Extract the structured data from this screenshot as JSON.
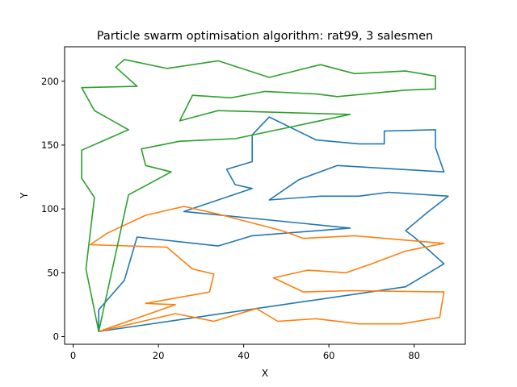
{
  "chart_data": {
    "type": "line",
    "title": "Particle swarm optimisation algorithm: rat99, 3 salesmen",
    "xlabel": "X",
    "ylabel": "Y",
    "xlim": [
      -2,
      92
    ],
    "ylim": [
      -6,
      227
    ],
    "x_ticks": [
      0,
      20,
      40,
      60,
      80
    ],
    "y_ticks": [
      0,
      50,
      100,
      150,
      200
    ],
    "x_tick_labels": [
      "0",
      "20",
      "40",
      "60",
      "80"
    ],
    "y_tick_labels": [
      "0",
      "50",
      "100",
      "150",
      "200"
    ],
    "grid": false,
    "legend": "none",
    "series": [
      {
        "color": "#1f77b4",
        "points": [
          [
            6,
            4
          ],
          [
            6,
            21
          ],
          [
            12,
            44
          ],
          [
            15,
            78
          ],
          [
            34,
            71
          ],
          [
            42,
            79
          ],
          [
            65,
            85
          ],
          [
            26,
            98
          ],
          [
            42,
            116
          ],
          [
            38,
            119
          ],
          [
            36,
            131
          ],
          [
            42,
            137
          ],
          [
            42,
            158
          ],
          [
            46,
            172
          ],
          [
            57,
            154
          ],
          [
            67,
            151
          ],
          [
            73,
            151
          ],
          [
            73,
            161
          ],
          [
            85,
            162
          ],
          [
            85,
            148
          ],
          [
            87,
            129
          ],
          [
            62,
            134
          ],
          [
            53,
            123
          ],
          [
            46,
            107
          ],
          [
            58,
            110
          ],
          [
            67,
            110
          ],
          [
            74,
            113
          ],
          [
            88,
            110
          ],
          [
            83,
            97
          ],
          [
            78,
            83
          ],
          [
            80,
            78
          ],
          [
            87,
            57
          ],
          [
            78,
            39
          ],
          [
            6,
            4
          ]
        ]
      },
      {
        "color": "#ff7f0e",
        "points": [
          [
            6,
            4
          ],
          [
            24,
            25
          ],
          [
            17,
            26
          ],
          [
            32,
            35
          ],
          [
            33,
            49
          ],
          [
            28,
            53
          ],
          [
            22,
            70
          ],
          [
            4,
            72
          ],
          [
            8,
            81
          ],
          [
            17,
            95
          ],
          [
            26,
            102
          ],
          [
            34,
            96
          ],
          [
            49,
            83
          ],
          [
            54,
            77
          ],
          [
            66,
            79
          ],
          [
            87,
            73
          ],
          [
            78,
            67
          ],
          [
            70,
            57
          ],
          [
            64,
            50
          ],
          [
            55,
            52
          ],
          [
            47,
            46
          ],
          [
            54,
            35
          ],
          [
            65,
            36
          ],
          [
            87,
            35
          ],
          [
            86,
            15
          ],
          [
            77,
            10
          ],
          [
            67,
            10
          ],
          [
            57,
            14
          ],
          [
            48,
            12
          ],
          [
            43,
            22
          ],
          [
            33,
            12
          ],
          [
            24,
            18
          ],
          [
            6,
            4
          ]
        ]
      },
      {
        "color": "#2ca02c",
        "points": [
          [
            6,
            4
          ],
          [
            3,
            53
          ],
          [
            5,
            109
          ],
          [
            2,
            124
          ],
          [
            2,
            146
          ],
          [
            13,
            162
          ],
          [
            5,
            177
          ],
          [
            2,
            195
          ],
          [
            15,
            196
          ],
          [
            10,
            211
          ],
          [
            12,
            217
          ],
          [
            22,
            210
          ],
          [
            34,
            216
          ],
          [
            46,
            203
          ],
          [
            58,
            213
          ],
          [
            66,
            206
          ],
          [
            78,
            208
          ],
          [
            85,
            204
          ],
          [
            85,
            194
          ],
          [
            78,
            193
          ],
          [
            62,
            188
          ],
          [
            57,
            190
          ],
          [
            45,
            192
          ],
          [
            37,
            187
          ],
          [
            28,
            189
          ],
          [
            25,
            169
          ],
          [
            34,
            177
          ],
          [
            65,
            174
          ],
          [
            38,
            155
          ],
          [
            25,
            153
          ],
          [
            16,
            147
          ],
          [
            17,
            134
          ],
          [
            23,
            129
          ],
          [
            13,
            111
          ],
          [
            6,
            4
          ]
        ]
      }
    ]
  }
}
